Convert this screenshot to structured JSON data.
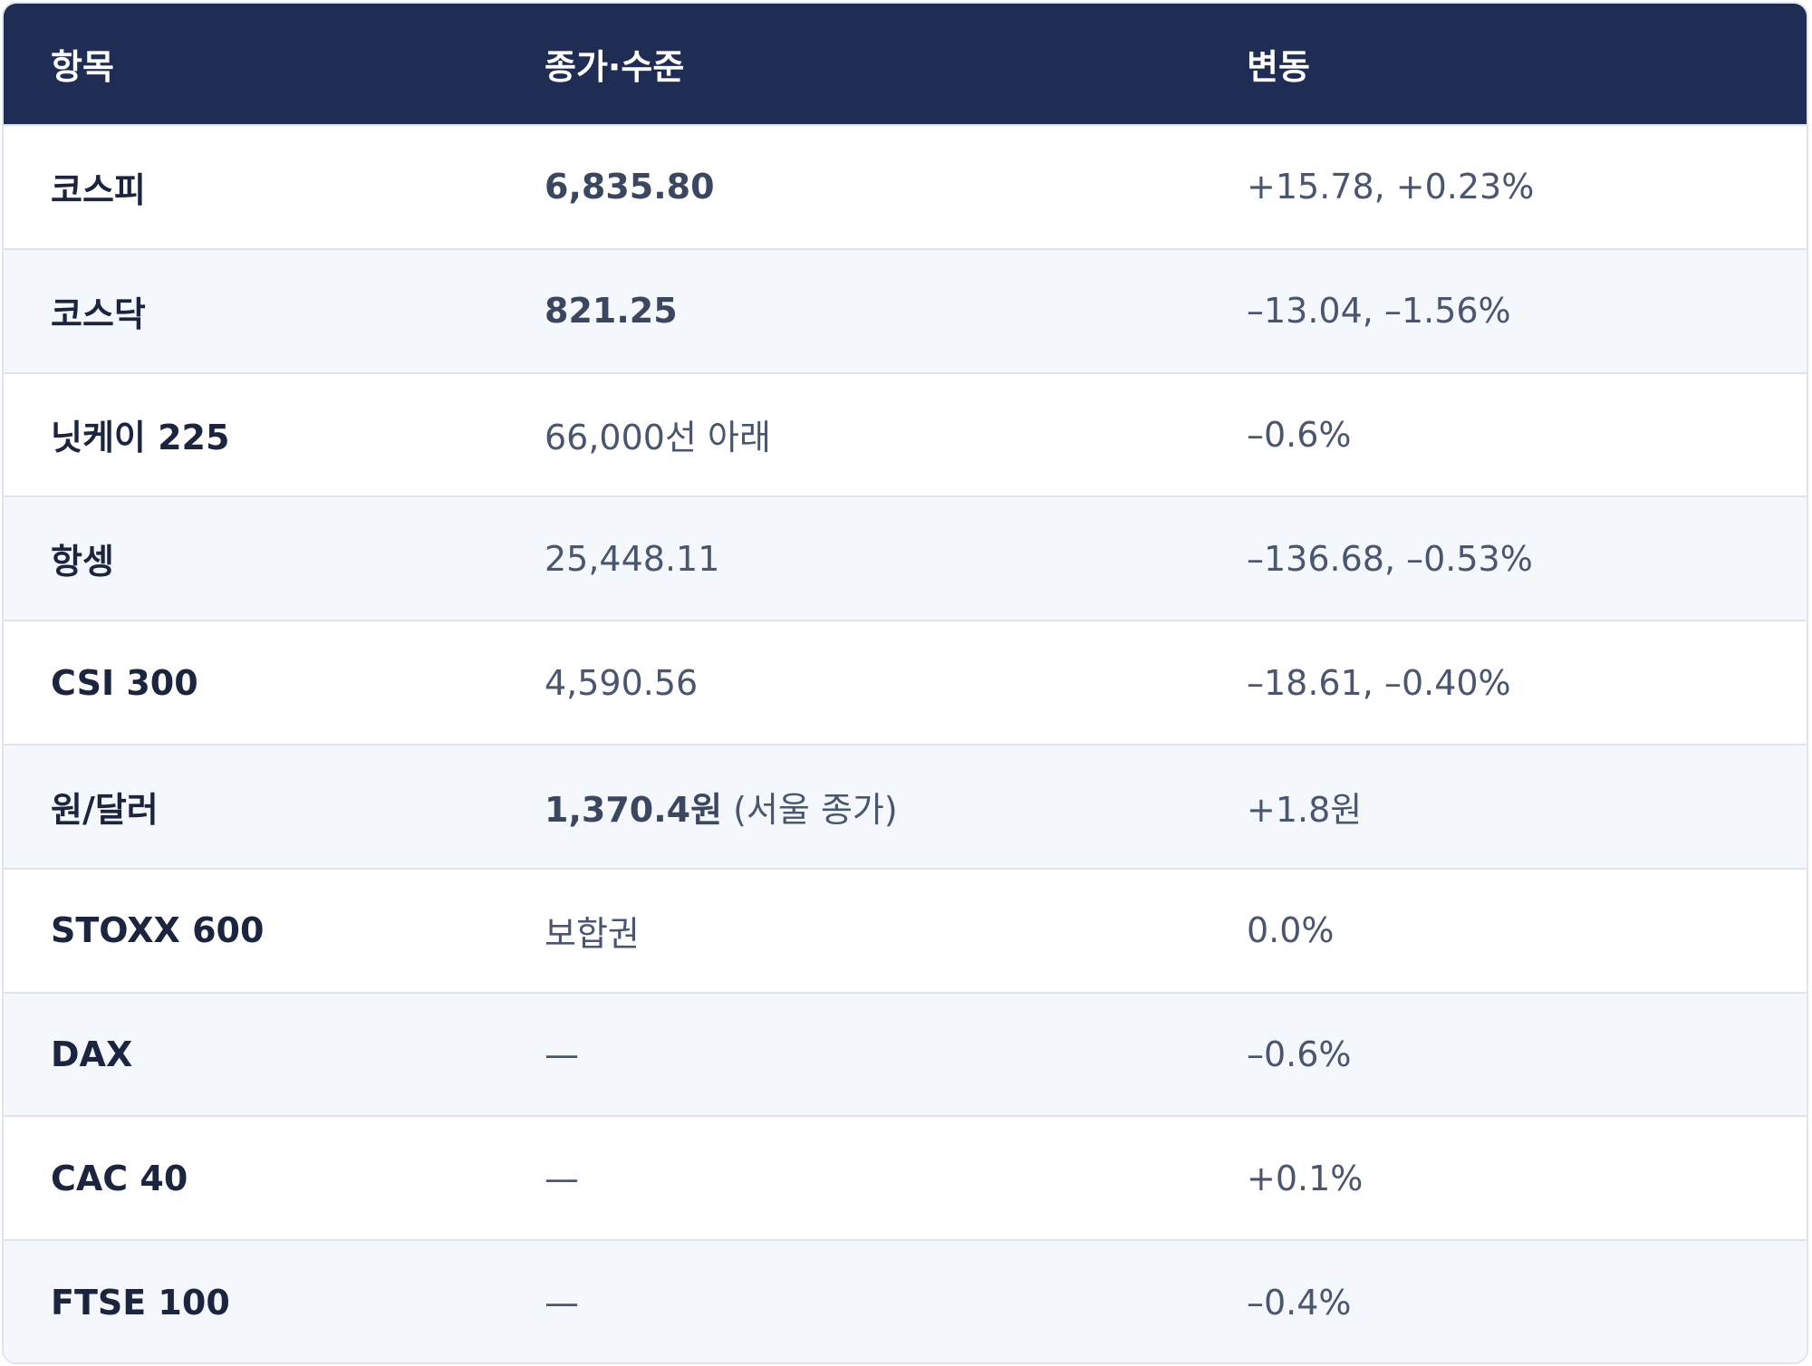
{
  "table": {
    "headers": {
      "item": "항목",
      "level": "종가·수준",
      "change": "변동"
    },
    "rows": [
      {
        "item": "코스피",
        "level": "6,835.80",
        "level_note": "",
        "level_bold": true,
        "change": "+15.78, +0.23%"
      },
      {
        "item": "코스닥",
        "level": "821.25",
        "level_note": "",
        "level_bold": true,
        "change": "–13.04, –1.56%"
      },
      {
        "item": "닛케이 225",
        "level": "66,000선 아래",
        "level_note": "",
        "level_bold": false,
        "change": "–0.6%"
      },
      {
        "item": "항셍",
        "level": "25,448.11",
        "level_note": "",
        "level_bold": false,
        "change": "–136.68, –0.53%"
      },
      {
        "item": "CSI 300",
        "level": "4,590.56",
        "level_note": "",
        "level_bold": false,
        "change": "–18.61, –0.40%"
      },
      {
        "item": "원/달러",
        "level": "1,370.4원",
        "level_note": " (서울 종가)",
        "level_bold": true,
        "change": "+1.8원"
      },
      {
        "item": "STOXX 600",
        "level": "보합권",
        "level_note": "",
        "level_bold": false,
        "change": "0.0%"
      },
      {
        "item": "DAX",
        "level": "—",
        "level_note": "",
        "level_bold": false,
        "change": "–0.6%"
      },
      {
        "item": "CAC 40",
        "level": "—",
        "level_note": "",
        "level_bold": false,
        "change": "+0.1%"
      },
      {
        "item": "FTSE 100",
        "level": "—",
        "level_note": "",
        "level_bold": false,
        "change": "–0.4%"
      }
    ]
  },
  "colors": {
    "header_bg": "#1f2d55",
    "header_text": "#ffffff",
    "row_alt_bg": "#f4f7fc",
    "border": "#dde4ee",
    "item_text": "#1c2540",
    "value_text": "#4a5670"
  }
}
